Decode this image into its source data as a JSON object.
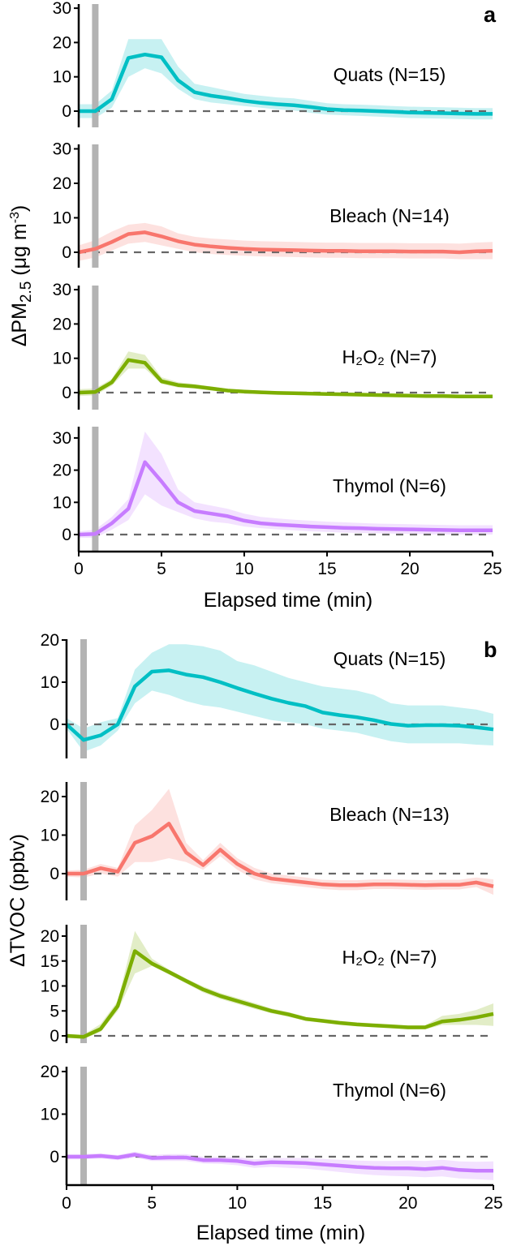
{
  "chart_data": [
    {
      "type": "line",
      "panel": "a",
      "xlabel": "Elapsed time (min)",
      "ylabel": {
        "delta": "ΔPM",
        "sub": "2.5",
        "unit_pre": " (μg m",
        "sup": "-3",
        "unit_post": ")"
      },
      "xlim": [
        0,
        25
      ],
      "xticks": [
        0,
        5,
        10,
        15,
        20,
        25
      ],
      "event_marker_x": 1,
      "reference_line_y": 0,
      "x": [
        0,
        1,
        2,
        3,
        4,
        5,
        6,
        7,
        8,
        9,
        10,
        11,
        12,
        13,
        14,
        15,
        16,
        17,
        18,
        19,
        20,
        21,
        22,
        23,
        24,
        25
      ],
      "series": [
        {
          "name": "Quats",
          "label": "Quats (N=15)",
          "color": "#00BFC4",
          "ylim": [
            -5,
            31
          ],
          "yticks": [
            0,
            10,
            20,
            30
          ],
          "values": [
            0,
            0,
            3.5,
            15.5,
            16.5,
            15.7,
            9,
            5.5,
            4.5,
            3.8,
            3,
            2.4,
            2,
            1.7,
            1.2,
            0.6,
            0.3,
            0.2,
            0,
            -0.2,
            -0.4,
            -0.5,
            -0.6,
            -0.7,
            -0.8,
            -0.8
          ],
          "lower": [
            -2,
            -2,
            1,
            10,
            12.5,
            11,
            6.5,
            3.5,
            2.5,
            2,
            1.5,
            1,
            0.5,
            0.2,
            -0.5,
            -1,
            -1.2,
            -1.4,
            -1.6,
            -1.8,
            -2,
            -2.1,
            -2.2,
            -2.3,
            -2.4,
            -2.4
          ],
          "upper": [
            2,
            2,
            6,
            21,
            21,
            21,
            13,
            8,
            7,
            6,
            5,
            4.5,
            4,
            3.7,
            3,
            2.3,
            2,
            1.9,
            1.7,
            1.5,
            1.3,
            1.2,
            1.1,
            1,
            0.9,
            0.9
          ]
        },
        {
          "name": "Bleach",
          "label": "Bleach (N=14)",
          "color": "#F8766D",
          "ylim": [
            -5,
            31
          ],
          "yticks": [
            0,
            10,
            20,
            30
          ],
          "values": [
            0,
            1,
            3,
            5.3,
            5.8,
            4.6,
            3.2,
            2.2,
            1.7,
            1.3,
            1,
            0.8,
            0.7,
            0.6,
            0.5,
            0.4,
            0.4,
            0.3,
            0.3,
            0.3,
            0.2,
            0.2,
            0.2,
            0,
            0.3,
            0.4
          ],
          "lower": [
            -2.5,
            -1.5,
            0.5,
            2.5,
            3,
            2,
            1,
            0,
            -0.5,
            -0.8,
            -1,
            -1.2,
            -1.3,
            -1.4,
            -1.5,
            -1.6,
            -1.6,
            -1.7,
            -1.7,
            -1.7,
            -1.8,
            -1.8,
            -1.8,
            -2,
            -2,
            -2
          ],
          "upper": [
            2,
            3.5,
            6,
            8,
            8.5,
            7.5,
            5.5,
            4.5,
            4,
            3.7,
            3.4,
            3.2,
            3.1,
            3,
            2.9,
            2.8,
            2.8,
            2.7,
            2.7,
            2.7,
            2.6,
            2.6,
            2.6,
            2.5,
            2.8,
            3
          ]
        },
        {
          "name": "H2O2",
          "label": "H₂O₂ (N=7)",
          "color": "#7CAE00",
          "ylim": [
            -5,
            31
          ],
          "yticks": [
            0,
            10,
            20,
            30
          ],
          "values": [
            0,
            0.2,
            3,
            9.5,
            8.7,
            3.3,
            2.2,
            1.8,
            1.2,
            0.6,
            0.3,
            0.1,
            -0.1,
            -0.2,
            -0.3,
            -0.4,
            -0.5,
            -0.6,
            -0.7,
            -0.8,
            -0.9,
            -1,
            -1,
            -1.1,
            -1.1,
            -1.1
          ],
          "lower": [
            -1,
            -0.8,
            2,
            7,
            7,
            2.5,
            1.5,
            1.2,
            0.6,
            0.1,
            -0.2,
            -0.4,
            -0.6,
            -0.7,
            -0.8,
            -0.9,
            -1,
            -1.1,
            -1.2,
            -1.3,
            -1.4,
            -1.5,
            -1.5,
            -1.6,
            -1.6,
            -1.6
          ],
          "upper": [
            1,
            1.2,
            4,
            12,
            11,
            4.5,
            3,
            2.5,
            1.8,
            1.1,
            0.8,
            0.6,
            0.4,
            0.3,
            0.2,
            0.1,
            0,
            -0.1,
            -0.2,
            -0.3,
            -0.4,
            -0.5,
            -0.5,
            -0.6,
            -0.6,
            -0.6
          ]
        },
        {
          "name": "Thymol",
          "label": "Thymol (N=6)",
          "color": "#C77CFF",
          "ylim": [
            -5,
            34
          ],
          "yticks": [
            0,
            10,
            20,
            30
          ],
          "values": [
            0,
            0.2,
            3.5,
            8,
            22.5,
            16.5,
            10,
            7.3,
            6.5,
            5.7,
            4.3,
            3.5,
            3.1,
            2.8,
            2.5,
            2.3,
            2.1,
            2,
            1.8,
            1.7,
            1.6,
            1.5,
            1.4,
            1.3,
            1.3,
            1.3
          ],
          "lower": [
            -1,
            -1,
            1.5,
            4.5,
            12.5,
            9,
            7,
            5,
            4,
            3.5,
            2.5,
            2,
            1.6,
            1.3,
            1,
            0.8,
            0.6,
            0.5,
            0.4,
            0.3,
            0.2,
            0.1,
            0,
            0,
            0,
            0
          ],
          "upper": [
            1,
            1.5,
            5.5,
            11,
            32,
            25,
            14,
            10,
            9,
            8,
            6.5,
            5.5,
            5,
            4.6,
            4.3,
            4,
            3.8,
            3.6,
            3.4,
            3.3,
            3.2,
            3.1,
            3,
            2.9,
            2.9,
            2.9
          ]
        }
      ]
    },
    {
      "type": "line",
      "panel": "b",
      "xlabel": "Elapsed time (min)",
      "ylabel": {
        "text": "ΔTVOC (ppbv)"
      },
      "xlim": [
        0,
        25
      ],
      "xticks": [
        0,
        5,
        10,
        15,
        20,
        25
      ],
      "event_marker_x": 1,
      "reference_line_y": 0,
      "x": [
        0,
        1,
        2,
        3,
        4,
        5,
        6,
        7,
        8,
        9,
        10,
        11,
        12,
        13,
        14,
        15,
        16,
        17,
        18,
        19,
        20,
        21,
        22,
        23,
        24,
        25
      ],
      "series": [
        {
          "name": "Quats",
          "label": "Quats (N=15)",
          "color": "#00BFC4",
          "ylim": [
            -8,
            20
          ],
          "yticks": [
            0,
            10,
            20
          ],
          "values": [
            0,
            -3.7,
            -2.6,
            0,
            9,
            12.5,
            12.8,
            11.8,
            11.2,
            10,
            8.6,
            7.3,
            6.1,
            5.1,
            4.3,
            2.8,
            2.2,
            1.7,
            1,
            0.1,
            -0.3,
            -0.2,
            -0.2,
            -0.3,
            -0.7,
            -1.2
          ],
          "lower": [
            -1,
            -6.5,
            -5,
            -1.5,
            5,
            8,
            7,
            5.5,
            4.5,
            4,
            3,
            2,
            1,
            0.5,
            0,
            -1,
            -1.5,
            -2,
            -3,
            -4,
            -4.5,
            -4.5,
            -4.5,
            -4.5,
            -4.8,
            -5
          ],
          "upper": [
            1.5,
            -1,
            0.5,
            1.5,
            13,
            17,
            19,
            19,
            18.5,
            17.5,
            15,
            14,
            12.5,
            11,
            10,
            9,
            8.5,
            8,
            7,
            5,
            4.5,
            4.5,
            4.5,
            4,
            3.5,
            2.5
          ]
        },
        {
          "name": "Bleach",
          "label": "Bleach (N=13)",
          "color": "#F8766D",
          "ylim": [
            -7,
            24
          ],
          "yticks": [
            0,
            10,
            20
          ],
          "values": [
            0,
            0,
            1.4,
            0.5,
            8,
            9.7,
            13,
            5.5,
            2.2,
            6.2,
            2.5,
            0,
            -1.3,
            -1.8,
            -2.3,
            -2.8,
            -3,
            -3,
            -2.8,
            -2.8,
            -2.9,
            -3,
            -2.9,
            -2.9,
            -2.3,
            -3.3
          ],
          "lower": [
            -0.8,
            -1,
            0,
            -0.8,
            3,
            3,
            4,
            3,
            1,
            4.5,
            1,
            -1.5,
            -2.5,
            -3,
            -3.5,
            -4,
            -4.3,
            -4.3,
            -4,
            -4,
            -4.1,
            -4.2,
            -4.1,
            -4.1,
            -3.5,
            -5.5
          ],
          "upper": [
            0.8,
            1,
            2.5,
            1.5,
            12.5,
            16.5,
            22,
            8,
            3.5,
            8,
            4,
            1.5,
            0,
            -0.5,
            -1,
            -1.6,
            -1.7,
            -1.7,
            -1.5,
            -1.5,
            -1.6,
            -1.7,
            -1.6,
            -1.6,
            -1,
            -1.5
          ]
        },
        {
          "name": "H2O2",
          "label": "H₂O₂ (N=7)",
          "color": "#7CAE00",
          "ylim": [
            -4,
            22
          ],
          "yticks": [
            0,
            5,
            10,
            15,
            20
          ],
          "values": [
            0,
            -0.2,
            1.4,
            6,
            17,
            14.5,
            12.8,
            11,
            9.3,
            8,
            7,
            6,
            5,
            4.3,
            3.4,
            3,
            2.6,
            2.3,
            2.1,
            1.9,
            1.7,
            1.7,
            2.9,
            3.2,
            3.7,
            4.4
          ],
          "lower": [
            -0.4,
            -0.6,
            0.8,
            5,
            12.5,
            14,
            12.3,
            10.5,
            8.7,
            7.4,
            6.4,
            5.4,
            4.5,
            3.8,
            3,
            2.6,
            2.2,
            1.9,
            1.7,
            1.5,
            1.3,
            1.3,
            2.2,
            2.2,
            2.2,
            2
          ],
          "upper": [
            0.4,
            0.2,
            2.4,
            7,
            21,
            15.5,
            13.3,
            11.5,
            9.9,
            8.6,
            7.6,
            6.6,
            5.5,
            4.8,
            3.8,
            3.4,
            3,
            2.7,
            2.5,
            2.3,
            2.1,
            2.1,
            4,
            4.4,
            5.2,
            6.5
          ]
        },
        {
          "name": "Thymol",
          "label": "Thymol (N=6)",
          "color": "#C77CFF",
          "ylim": [
            -7,
            21
          ],
          "yticks": [
            0,
            10,
            20
          ],
          "values": [
            0,
            0,
            0.2,
            -0.2,
            0.5,
            -0.3,
            -0.2,
            -0.2,
            -0.8,
            -0.8,
            -1,
            -1.6,
            -1.3,
            -1.4,
            -1.5,
            -1.8,
            -2.1,
            -2.4,
            -2.6,
            -2.7,
            -2.7,
            -2.9,
            -2.6,
            -3.1,
            -3.3,
            -3.3
          ],
          "lower": [
            -0.6,
            -0.6,
            -0.4,
            -0.8,
            -0.2,
            -1,
            -1,
            -1,
            -1.6,
            -1.7,
            -2,
            -2.6,
            -2.4,
            -2.6,
            -2.8,
            -3.2,
            -3.6,
            -4,
            -4.3,
            -4.5,
            -4.6,
            -4.8,
            -4.6,
            -5.1,
            -5.3,
            -5.5
          ],
          "upper": [
            0.6,
            0.6,
            0.8,
            0.4,
            1.2,
            0.4,
            0.6,
            0.6,
            0,
            0,
            -0.1,
            -0.6,
            -0.3,
            -0.3,
            -0.3,
            -0.5,
            -0.7,
            -0.9,
            -1,
            -1,
            -0.9,
            -1,
            -0.7,
            -1.1,
            -1.2,
            -1.1
          ]
        }
      ]
    }
  ]
}
